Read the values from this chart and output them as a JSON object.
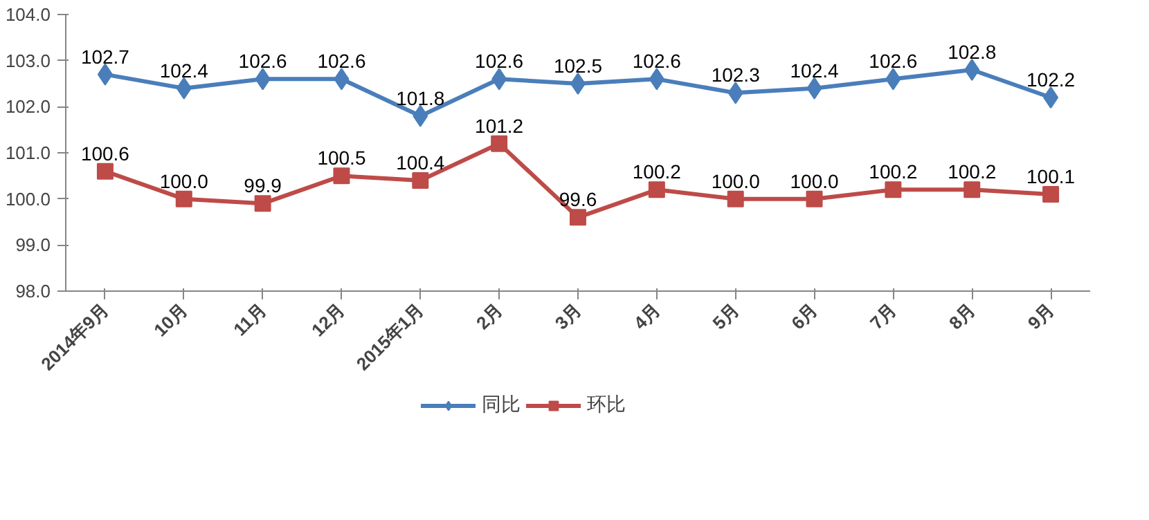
{
  "chart_data": {
    "type": "line",
    "categories": [
      "2014年9月",
      "10月",
      "11月",
      "12月",
      "2015年1月",
      "2月",
      "3月",
      "4月",
      "5月",
      "6月",
      "7月",
      "8月",
      "9月"
    ],
    "series": [
      {
        "name": "同比",
        "color": "#4a7ebb",
        "marker": "diamond",
        "values": [
          102.7,
          102.4,
          102.6,
          102.6,
          101.8,
          102.6,
          102.5,
          102.6,
          102.3,
          102.4,
          102.6,
          102.8,
          102.2
        ],
        "value_labels": [
          "102.7",
          "102.4",
          "102.6",
          "102.6",
          "101.8",
          "102.6",
          "102.5",
          "102.6",
          "102.3",
          "102.4",
          "102.6",
          "102.8",
          "102.2"
        ]
      },
      {
        "name": "环比",
        "color": "#be4b48",
        "marker": "square",
        "values": [
          100.6,
          100.0,
          99.9,
          100.5,
          100.4,
          101.2,
          99.6,
          100.2,
          100.0,
          100.0,
          100.2,
          100.2,
          100.1
        ],
        "value_labels": [
          "100.6",
          "100.0",
          "99.9",
          "100.5",
          "100.4",
          "101.2",
          "99.6",
          "100.2",
          "100.0",
          "100.0",
          "100.2",
          "100.2",
          "100.1"
        ]
      }
    ],
    "ylim": [
      98,
      104
    ],
    "yticks": [
      {
        "value": 98,
        "label": "98.0"
      },
      {
        "value": 99,
        "label": "99.0"
      },
      {
        "value": 100,
        "label": "100.0"
      },
      {
        "value": 101,
        "label": "101.0"
      },
      {
        "value": 102,
        "label": "102.0"
      },
      {
        "value": 103,
        "label": "103.0"
      },
      {
        "value": 104,
        "label": "104.0"
      }
    ],
    "grid": false,
    "legend": "bottom",
    "line_style": "solid"
  }
}
